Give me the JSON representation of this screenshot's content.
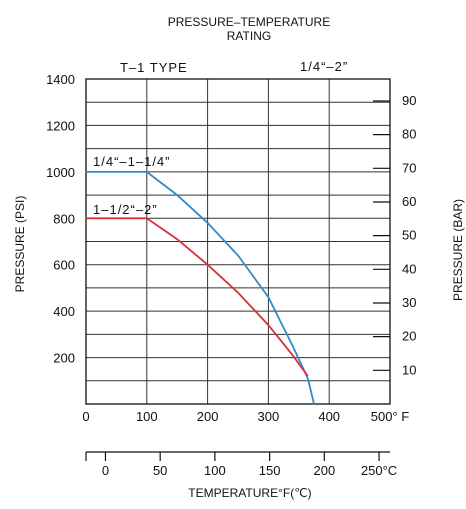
{
  "chart_data": {
    "type": "line",
    "title": "PRESSURE–TEMPERATURE",
    "subtitle": "RATING",
    "header_left": "T–1 TYPE",
    "header_right": "1/4“–2”",
    "xlabel": "TEMPERATURE°F(℃)",
    "ylabel": "PRESSURE (PSI)",
    "ylabel_right": "PRESSURE (BAR)",
    "xlim": [
      0,
      500
    ],
    "ylim": [
      0,
      1400
    ],
    "x_ticks": [
      "0",
      "100",
      "200",
      "300",
      "400",
      "500° F"
    ],
    "x_tick_values": [
      0,
      100,
      200,
      300,
      400,
      500
    ],
    "y_ticks": [
      "200",
      "400",
      "600",
      "800",
      "1000",
      "1200",
      "1400"
    ],
    "y_tick_values": [
      200,
      400,
      600,
      800,
      1000,
      1200,
      1400
    ],
    "bar_ticks": [
      "10",
      "20",
      "30",
      "40",
      "50",
      "60",
      "70",
      "80",
      "90"
    ],
    "bar_tick_values": [
      10,
      20,
      30,
      40,
      50,
      60,
      70,
      80,
      90
    ],
    "celsius_ticks": [
      "0",
      "50",
      "100",
      "150",
      "200",
      "250°C"
    ],
    "celsius_tick_values": [
      0,
      50,
      100,
      150,
      200,
      250
    ],
    "grid": true,
    "series": [
      {
        "name": "1/4“–1–1/4”",
        "color": "#2e8bc9",
        "points": [
          [
            0,
            1000
          ],
          [
            100,
            1000
          ],
          [
            150,
            900
          ],
          [
            200,
            780
          ],
          [
            250,
            640
          ],
          [
            300,
            460
          ],
          [
            340,
            250
          ],
          [
            365,
            110
          ],
          [
            375,
            0
          ]
        ]
      },
      {
        "name": "1–1/2“–2”",
        "color": "#d6303a",
        "points": [
          [
            0,
            800
          ],
          [
            100,
            800
          ],
          [
            150,
            710
          ],
          [
            200,
            600
          ],
          [
            250,
            480
          ],
          [
            300,
            340
          ],
          [
            340,
            210
          ],
          [
            365,
            120
          ]
        ]
      }
    ]
  }
}
